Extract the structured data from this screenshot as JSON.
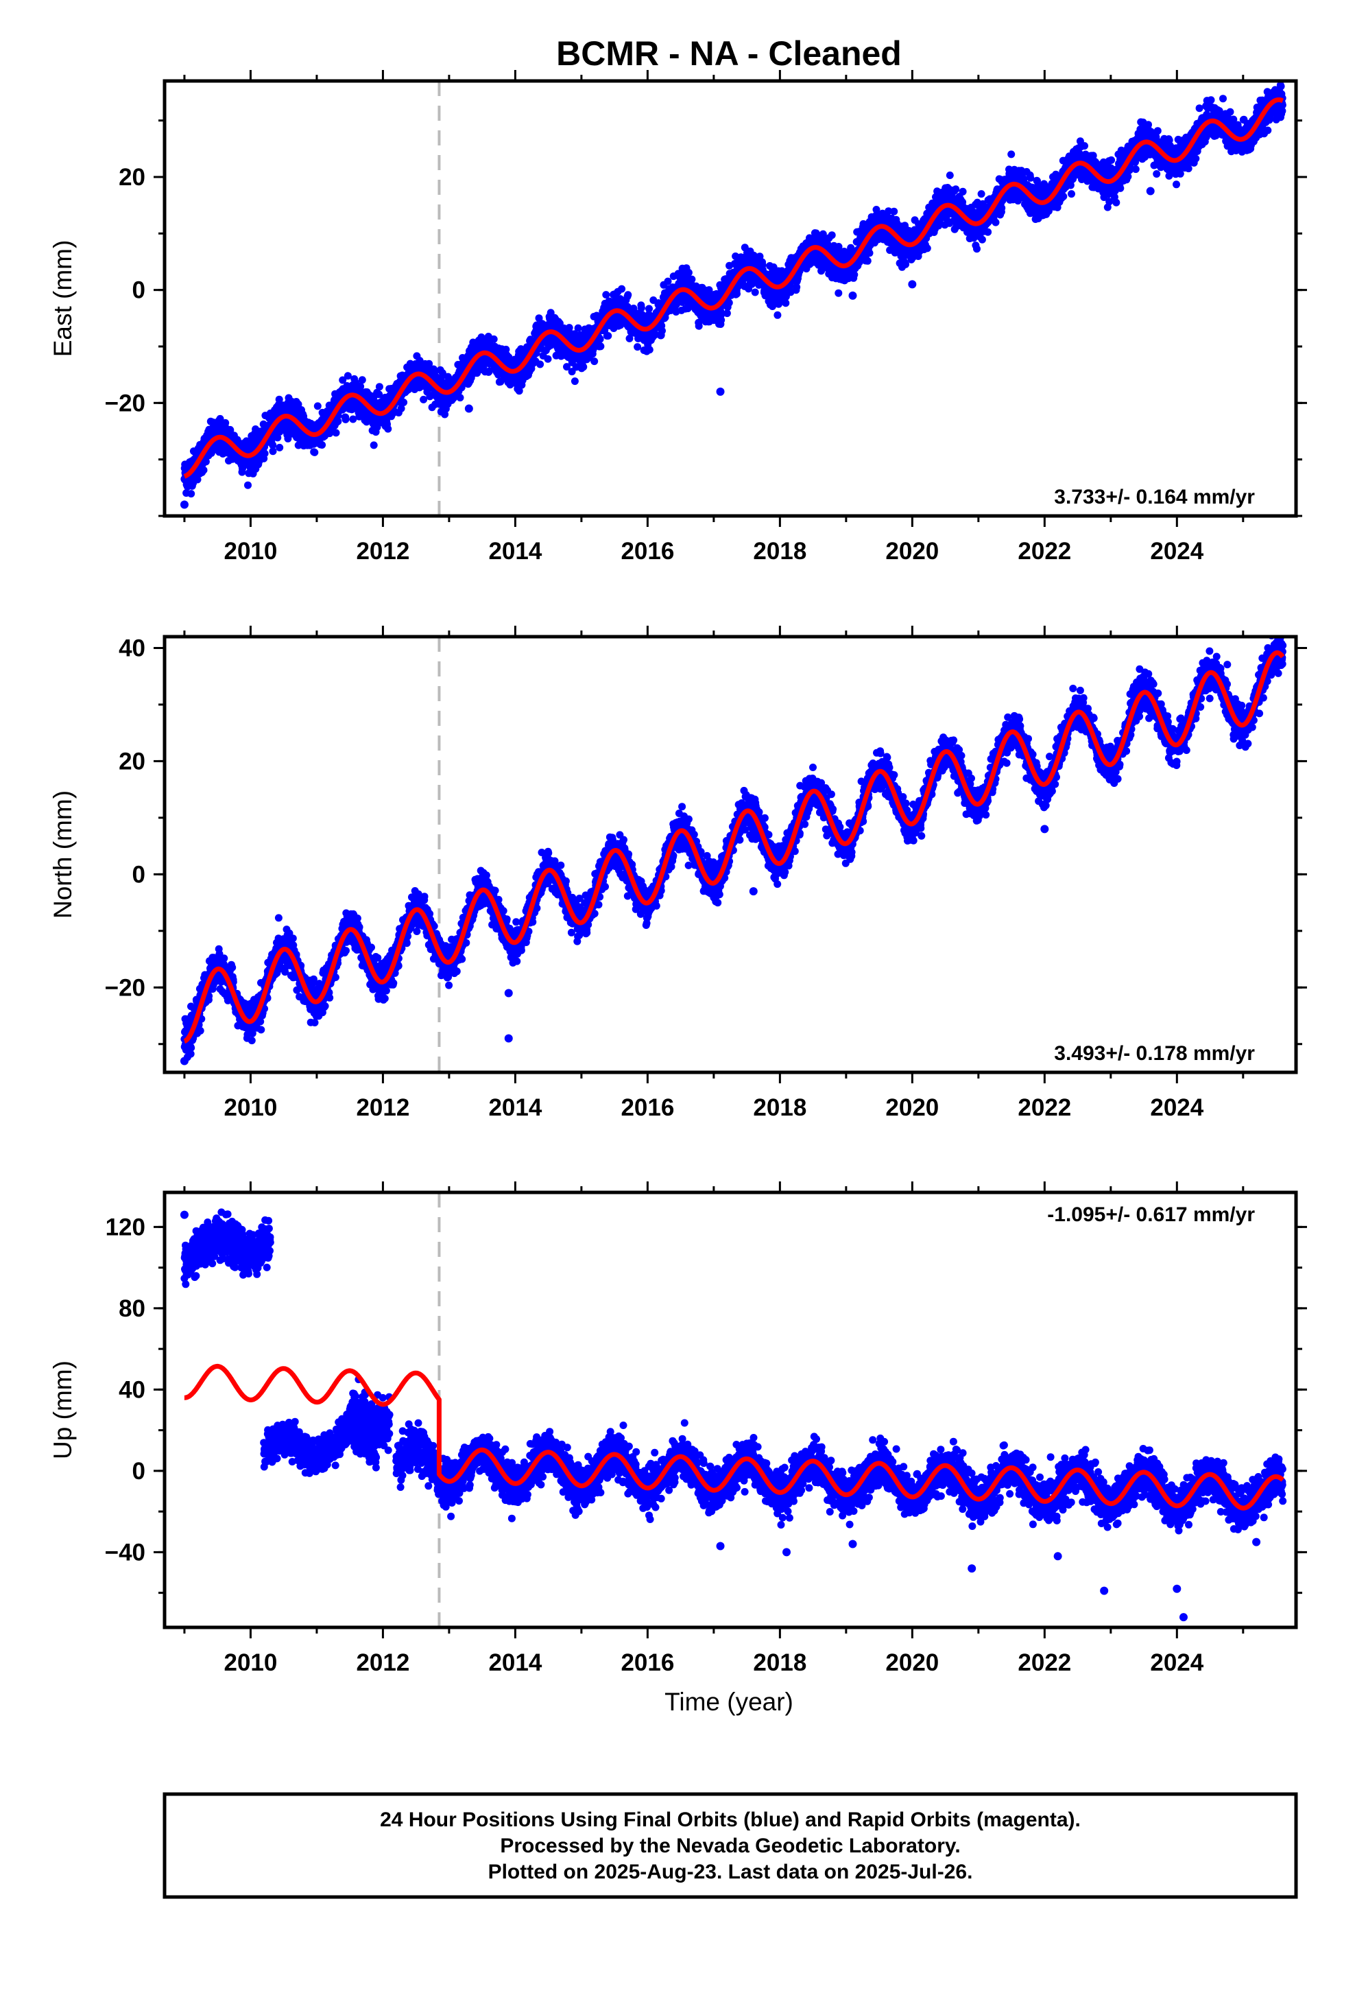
{
  "title": "BCMR  - NA - Cleaned",
  "colors": {
    "data": "#0000ff",
    "model": "#ff0000",
    "offset_line": "#bbbbbb",
    "frame": "#000000"
  },
  "chart_data": [
    {
      "type": "scatter",
      "ylabel": "East (mm)",
      "xlim": [
        2008.7,
        2025.8
      ],
      "ylim": [
        -40,
        37
      ],
      "yticks": [
        -20,
        0,
        20
      ],
      "xticks": [
        2010,
        2012,
        2014,
        2016,
        2018,
        2020,
        2022,
        2024
      ],
      "rate_label": "3.733+/- 0.164 mm/yr",
      "rate_position": "bottom-right",
      "offset_epoch": 2012.85,
      "model": {
        "start_value": -30.5,
        "rate": 3.733,
        "annual_amplitude": 2.5,
        "noise": 1.5
      },
      "outliers": [
        [
          2009.0,
          -38
        ],
        [
          2017.1,
          -18
        ],
        [
          2020.0,
          1
        ],
        [
          2019.1,
          -1
        ],
        [
          2016.2,
          -8
        ],
        [
          2013.3,
          -21
        ],
        [
          2023.6,
          17.5
        ]
      ]
    },
    {
      "type": "scatter",
      "ylabel": "North (mm)",
      "xlim": [
        2008.7,
        2025.8
      ],
      "ylim": [
        -35,
        42
      ],
      "yticks": [
        -20,
        0,
        20,
        40
      ],
      "xticks": [
        2010,
        2012,
        2014,
        2016,
        2018,
        2020,
        2022,
        2024
      ],
      "rate_label": "3.493+/- 0.178 mm/yr",
      "rate_position": "bottom-right",
      "offset_epoch": 2012.85,
      "model": {
        "start_value": -24,
        "rate": 3.493,
        "annual_amplitude": 5.5,
        "noise": 1.5
      },
      "outliers": [
        [
          2013.9,
          -29
        ],
        [
          2009.0,
          -33
        ],
        [
          2013.9,
          -21
        ],
        [
          2017.6,
          -3
        ],
        [
          2022.0,
          8
        ]
      ]
    },
    {
      "type": "scatter",
      "ylabel": "Up (mm)",
      "xlabel": "Time (year)",
      "xlim": [
        2008.7,
        2025.8
      ],
      "ylim": [
        -77,
        137
      ],
      "yticks": [
        -40,
        0,
        40,
        80,
        120
      ],
      "xticks": [
        2010,
        2012,
        2014,
        2016,
        2018,
        2020,
        2022,
        2024
      ],
      "rate_label": "-1.095+/- 0.617 mm/yr",
      "rate_position": "top-right",
      "offset_epoch": 2012.85,
      "model": {
        "segments": [
          {
            "start": 2009.0,
            "end": 2012.85,
            "base": 44,
            "rate": -1.095,
            "annual_amplitude": 8
          },
          {
            "start": 2012.85,
            "end": 2025.6,
            "base": 3,
            "rate": -1.095,
            "annual_amplitude": 8
          }
        ]
      },
      "data_segments": [
        {
          "start": 2009.0,
          "end": 2010.3,
          "base": 108,
          "rate": 4,
          "annual_amplitude": 5,
          "noise": 5
        },
        {
          "start": 2010.2,
          "end": 2011.9,
          "base": 10,
          "rate": 3,
          "annual_amplitude": 6,
          "noise": 4
        },
        {
          "start": 2011.5,
          "end": 2012.1,
          "base": 23,
          "rate": 8,
          "annual_amplitude": 4,
          "noise": 6
        },
        {
          "start": 2012.2,
          "end": 2025.6,
          "base": 3,
          "rate": -1.1,
          "annual_amplitude": 8,
          "noise": 5
        }
      ],
      "outliers": [
        [
          2009.0,
          126
        ],
        [
          2024.1,
          -72
        ],
        [
          2022.9,
          -59
        ],
        [
          2024.0,
          -58
        ],
        [
          2020.9,
          -48
        ],
        [
          2018.1,
          -40
        ],
        [
          2017.1,
          -37
        ],
        [
          2019.1,
          -36
        ],
        [
          2022.2,
          -42
        ],
        [
          2025.2,
          -35
        ]
      ]
    }
  ],
  "footer": {
    "line1": "24 Hour Positions Using Final Orbits (blue) and Rapid Orbits (magenta).",
    "line2": "Processed by the Nevada Geodetic Laboratory.",
    "line3": "Plotted on 2025-Aug-23. Last data on 2025-Jul-26."
  }
}
